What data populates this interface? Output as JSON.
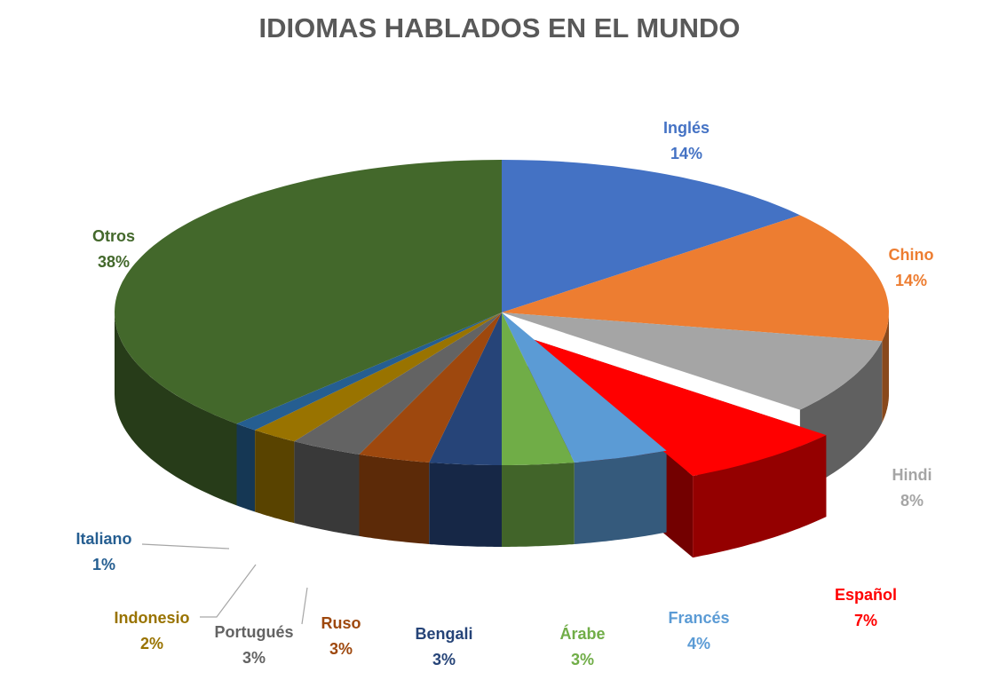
{
  "chart_data": {
    "type": "pie",
    "title": "IDIOMAS HABLADOS EN EL MUNDO",
    "unit": "%",
    "slices": [
      {
        "label": "Inglés",
        "value": 14,
        "value_text": "14%",
        "color": "#4472C4"
      },
      {
        "label": "Chino",
        "value": 14,
        "value_text": "14%",
        "color": "#ED7D31"
      },
      {
        "label": "Hindi",
        "value": 8,
        "value_text": "8%",
        "color": "#A5A5A5"
      },
      {
        "label": "Español",
        "value": 7,
        "value_text": "7%",
        "color": "#FF0000",
        "exploded": true
      },
      {
        "label": "Francés",
        "value": 4,
        "value_text": "4%",
        "color": "#5B9BD5"
      },
      {
        "label": "Árabe",
        "value": 3,
        "value_text": "3%",
        "color": "#70AD47"
      },
      {
        "label": "Bengali",
        "value": 3,
        "value_text": "3%",
        "color": "#264478"
      },
      {
        "label": "Ruso",
        "value": 3,
        "value_text": "3%",
        "color": "#9E480E"
      },
      {
        "label": "Portugués",
        "value": 3,
        "value_text": "3%",
        "color": "#636363"
      },
      {
        "label": "Indonesio",
        "value": 2,
        "value_text": "2%",
        "color": "#997300"
      },
      {
        "label": "Italiano",
        "value": 1,
        "value_text": "1%",
        "color": "#255E91"
      },
      {
        "label": "Otros",
        "value": 38,
        "value_text": "38%",
        "color": "#43682B"
      }
    ],
    "label_colors": {
      "Inglés": "#4472C4",
      "Chino": "#ED7D31",
      "Hindi": "#A5A5A5",
      "Español": "#FF0000",
      "Francés": "#5B9BD5",
      "Árabe": "#70AD47",
      "Bengali": "#264478",
      "Ruso": "#9E480E",
      "Portugués": "#636363",
      "Indonesio": "#997300",
      "Italiano": "#255E91",
      "Otros": "#43682B"
    },
    "style": "3d-pie",
    "legend": "none",
    "data_labels": "category-and-percent"
  }
}
